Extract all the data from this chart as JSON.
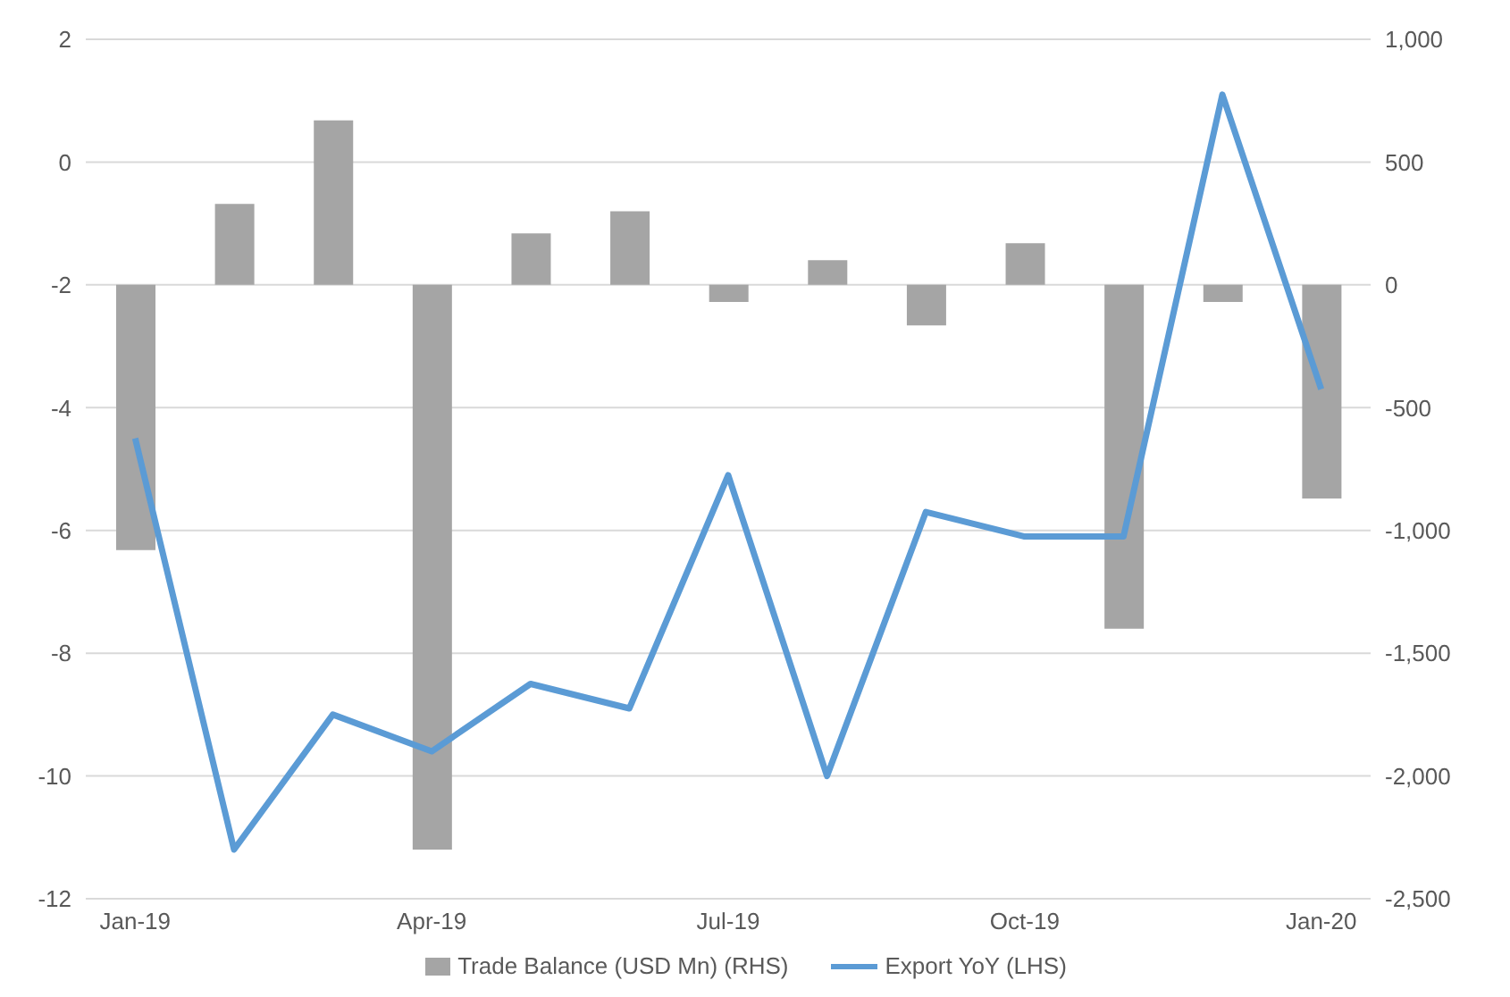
{
  "chart_data": {
    "type": "bar",
    "categories": [
      "Jan-19",
      null,
      null,
      "Apr-19",
      null,
      null,
      "Jul-19",
      null,
      null,
      "Oct-19",
      null,
      null,
      "Jan-20"
    ],
    "series": [
      {
        "name": "Trade Balance (USD Mn) (RHS)",
        "axis": "y2",
        "color": "#a5a5a5",
        "values": [
          -1080,
          330,
          670,
          -2300,
          210,
          300,
          -70,
          100,
          -165,
          170,
          -1400,
          -70,
          -870
        ]
      },
      {
        "name": "Export YoY (LHS)",
        "type": "line",
        "color": "#5b9bd5",
        "values": [
          -4.5,
          -11.2,
          -9.0,
          -9.6,
          -8.5,
          -8.9,
          -5.1,
          -10.0,
          -5.7,
          -6.1,
          -6.1,
          1.1,
          -3.7
        ]
      }
    ],
    "ylim": [
      -12,
      2
    ],
    "yticks": [
      -12,
      -10,
      -8,
      -6,
      -4,
      -2,
      0,
      2
    ],
    "y2lim": [
      -2500,
      1000
    ],
    "y2ticks": [
      {
        "value": -2500,
        "label": "-2,500"
      },
      {
        "value": -2000,
        "label": "-2,000"
      },
      {
        "value": -1500,
        "label": "-1,500"
      },
      {
        "value": -1000,
        "label": "-1,000"
      },
      {
        "value": -500,
        "label": "-500"
      },
      {
        "value": 0,
        "label": "0"
      },
      {
        "value": 500,
        "label": "500"
      },
      {
        "value": 1000,
        "label": "1,000"
      }
    ],
    "grid": "y",
    "legend": "bottom",
    "marker": "none",
    "line_style": "solid"
  }
}
